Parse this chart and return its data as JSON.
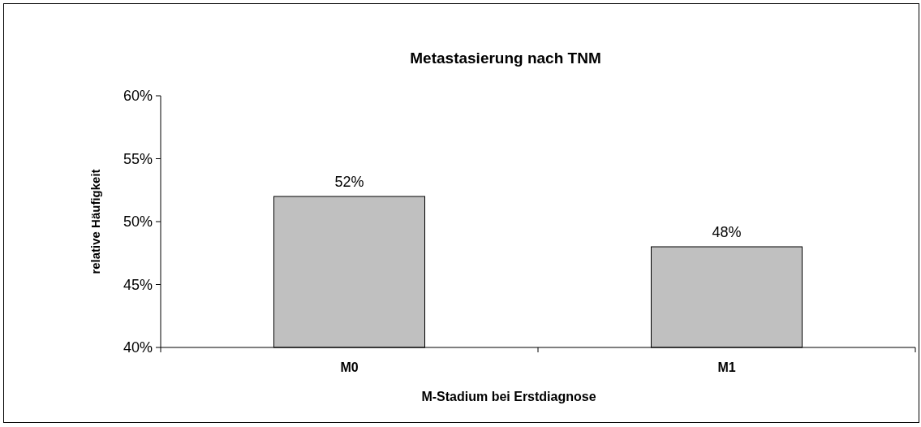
{
  "chart_data": {
    "type": "bar",
    "title": "Metastasierung nach TNM",
    "xlabel": "M-Stadium bei Erstdiagnose",
    "ylabel": "relative Häufigkeit",
    "categories": [
      "M0",
      "M1"
    ],
    "values": [
      52,
      48
    ],
    "value_labels": [
      "52%",
      "48%"
    ],
    "color": "#c0c0c0",
    "ylim": [
      40,
      60
    ],
    "yticks": [
      {
        "value": 40,
        "label": "40%"
      },
      {
        "value": 45,
        "label": "45%"
      },
      {
        "value": 50,
        "label": "50%"
      },
      {
        "value": 55,
        "label": "55%"
      },
      {
        "value": 60,
        "label": "60%"
      }
    ],
    "grid": false
  }
}
